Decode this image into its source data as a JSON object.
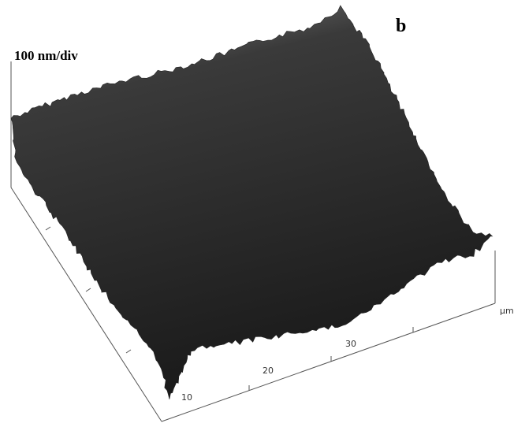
{
  "panel_label": "b",
  "z_scale": "100 nm/div",
  "x_axis": {
    "ticks": [
      "10",
      "20",
      "30"
    ],
    "unit": "µm"
  }
}
